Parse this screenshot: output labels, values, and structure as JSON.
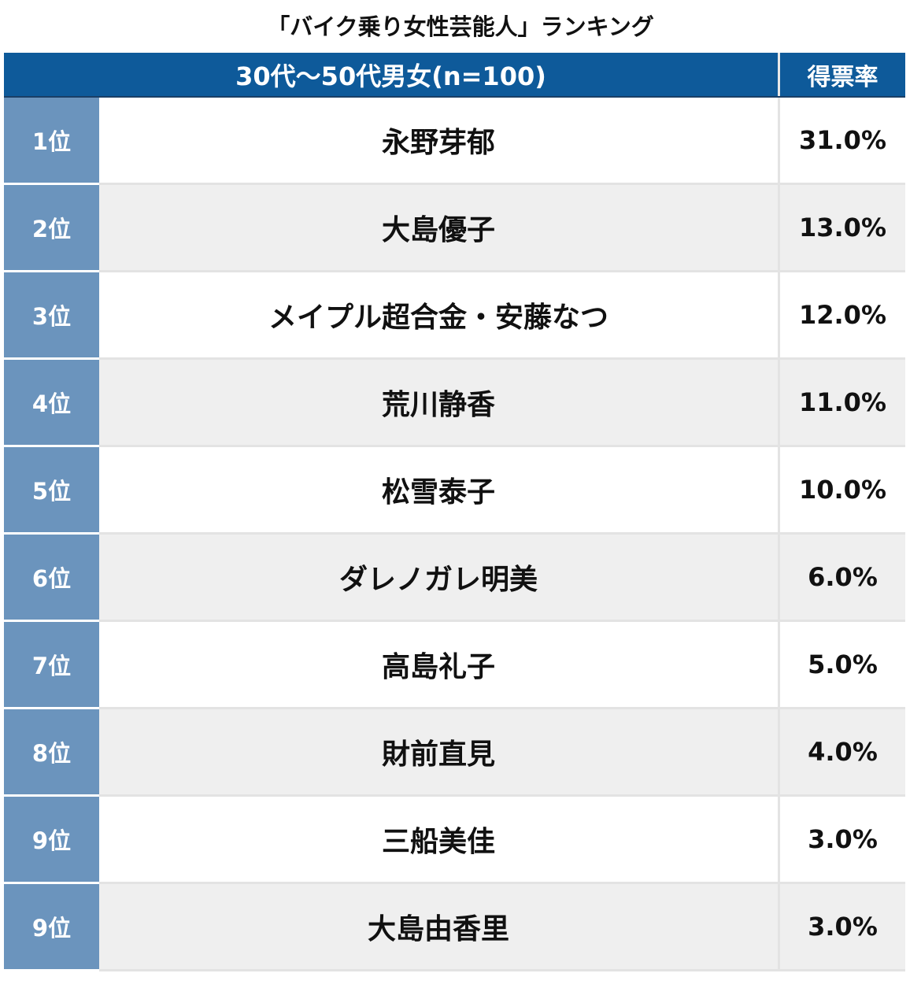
{
  "title": "「バイク乗り女性芸能人」ランキング",
  "header": {
    "group_label": "30代〜50代男女(n=100)",
    "rate_label": "得票率"
  },
  "colors": {
    "header_bg": "#0e5a9a",
    "rank_bg": "#6b94bd",
    "row_alt_bg": "#efefef"
  },
  "chart_data": {
    "type": "table",
    "title": "「バイク乗り女性芸能人」ランキング",
    "columns": [
      "30代〜50代男女(n=100)",
      "得票率"
    ],
    "rows": [
      {
        "rank": "1位",
        "name": "永野芽郁",
        "rate": "31.0%"
      },
      {
        "rank": "2位",
        "name": "大島優子",
        "rate": "13.0%"
      },
      {
        "rank": "3位",
        "name": "メイプル超合金・安藤なつ",
        "rate": "12.0%"
      },
      {
        "rank": "4位",
        "name": "荒川静香",
        "rate": "11.0%"
      },
      {
        "rank": "5位",
        "name": "松雪泰子",
        "rate": "10.0%"
      },
      {
        "rank": "6位",
        "name": "ダレノガレ明美",
        "rate": "6.0%"
      },
      {
        "rank": "7位",
        "name": "高島礼子",
        "rate": "5.0%"
      },
      {
        "rank": "8位",
        "name": "財前直見",
        "rate": "4.0%"
      },
      {
        "rank": "9位",
        "name": "三船美佳",
        "rate": "3.0%"
      },
      {
        "rank": "9位",
        "name": "大島由香里",
        "rate": "3.0%"
      }
    ]
  }
}
